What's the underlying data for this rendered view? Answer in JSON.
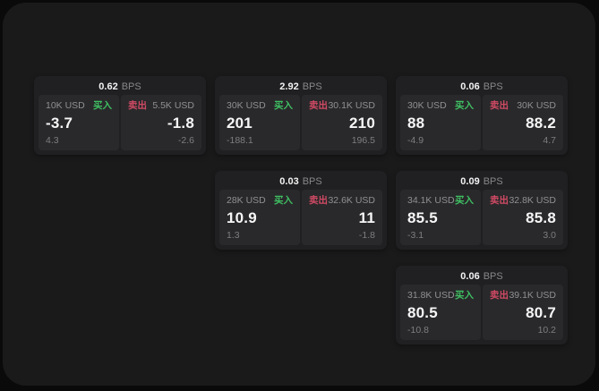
{
  "labels": {
    "bps_unit": "BPS",
    "buy": "买入",
    "sell": "卖出"
  },
  "colors": {
    "buy_green": "#3fbf62",
    "sell_red": "#d04a64",
    "card_bg": "#202022",
    "tile_bg": "#29292b"
  },
  "cards": [
    {
      "bps": "0.62",
      "buy": {
        "amount": "10K USD",
        "value": "-3.7",
        "sub": "4.3"
      },
      "sell": {
        "amount": "5.5K USD",
        "value": "-1.8",
        "sub": "-2.6"
      }
    },
    {
      "bps": "2.92",
      "buy": {
        "amount": "30K USD",
        "value": "201",
        "sub": "-188.1"
      },
      "sell": {
        "amount": "30.1K USD",
        "value": "210",
        "sub": "196.5"
      }
    },
    {
      "bps": "0.06",
      "buy": {
        "amount": "30K USD",
        "value": "88",
        "sub": "-4.9"
      },
      "sell": {
        "amount": "30K USD",
        "value": "88.2",
        "sub": "4.7"
      }
    },
    {
      "bps": "0.03",
      "buy": {
        "amount": "28K USD",
        "value": "10.9",
        "sub": "1.3"
      },
      "sell": {
        "amount": "32.6K USD",
        "value": "11",
        "sub": "-1.8"
      }
    },
    {
      "bps": "0.09",
      "buy": {
        "amount": "34.1K USD",
        "value": "85.5",
        "sub": "-3.1"
      },
      "sell": {
        "amount": "32.8K USD",
        "value": "85.8",
        "sub": "3.0"
      }
    },
    {
      "bps": "0.06",
      "buy": {
        "amount": "31.8K USD",
        "value": "80.5",
        "sub": "-10.8"
      },
      "sell": {
        "amount": "39.1K USD",
        "value": "80.7",
        "sub": "10.2"
      }
    }
  ]
}
